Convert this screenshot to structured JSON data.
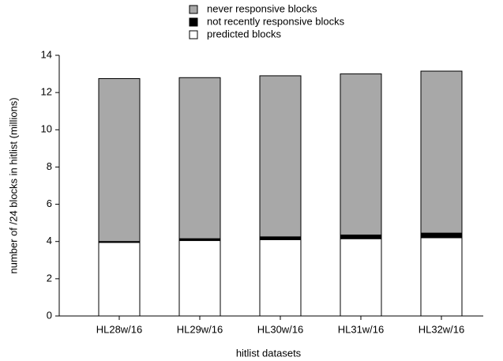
{
  "chart_data": {
    "type": "stacked_bar",
    "xlabel": "hitlist datasets",
    "ylabel": "number of /24 blocks in hitlist (millions)",
    "categories": [
      "HL28w/16",
      "HL29w/16",
      "HL30w/16",
      "HL31w/16",
      "HL32w/16"
    ],
    "series": [
      {
        "name": "predicted blocks",
        "color": "#ffffff",
        "values": [
          3.95,
          4.05,
          4.1,
          4.15,
          4.2
        ]
      },
      {
        "name": "not recently responsive blocks",
        "color": "#000000",
        "values": [
          0.05,
          0.1,
          0.15,
          0.2,
          0.25
        ]
      },
      {
        "name": "never responsive blocks",
        "color": "#a8a8a8",
        "values": [
          8.75,
          8.65,
          8.65,
          8.65,
          8.7
        ]
      }
    ],
    "ylim": [
      0,
      14
    ],
    "yticks": [
      0,
      2,
      4,
      6,
      8,
      10,
      12,
      14
    ]
  }
}
